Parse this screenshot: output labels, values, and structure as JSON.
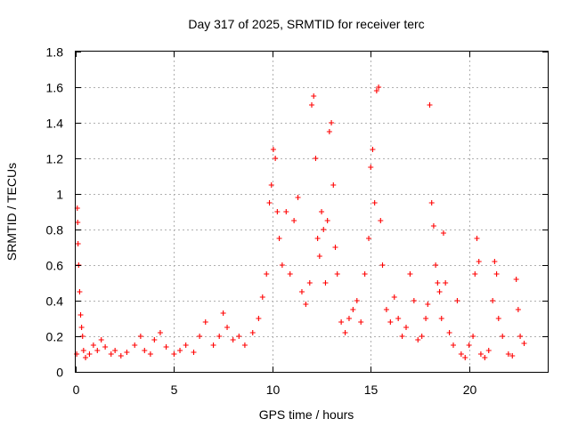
{
  "chart_data": {
    "type": "scatter",
    "title": "Day 317 of 2025, SRMTID for receiver terc",
    "xlabel": "GPS time / hours",
    "ylabel": "SRMTID / TECUs",
    "xlim": [
      0,
      24
    ],
    "ylim": [
      0,
      1.8
    ],
    "xticks": [
      0,
      5,
      10,
      15,
      20
    ],
    "xtick_labels": [
      "0",
      "5",
      "10",
      "15",
      "20"
    ],
    "yticks": [
      0,
      0.2,
      0.4,
      0.6,
      0.8,
      1.0,
      1.2,
      1.4,
      1.6,
      1.8
    ],
    "ytick_labels": [
      "0",
      "0.2",
      "0.4",
      "0.6",
      "0.8",
      "1",
      "1.2",
      "1.4",
      "1.6",
      "1.8"
    ],
    "grid": true,
    "marker": "+",
    "color": "#ff0000",
    "series": [
      {
        "name": "SRMTID",
        "x": [
          0.05,
          0.08,
          0.1,
          0.12,
          0.15,
          0.2,
          0.25,
          0.3,
          0.35,
          0.4,
          0.5,
          0.7,
          0.9,
          1.1,
          1.3,
          1.5,
          1.8,
          2.0,
          2.3,
          2.6,
          3.0,
          3.3,
          3.5,
          3.8,
          4.0,
          4.3,
          4.6,
          5.0,
          5.3,
          5.6,
          6.0,
          6.3,
          6.6,
          7.0,
          7.3,
          7.5,
          7.7,
          8.0,
          8.3,
          8.6,
          9.0,
          9.3,
          9.5,
          9.7,
          9.85,
          9.95,
          10.05,
          10.15,
          10.25,
          10.35,
          10.5,
          10.7,
          10.9,
          11.1,
          11.3,
          11.5,
          11.7,
          11.9,
          12.0,
          12.1,
          12.2,
          12.3,
          12.4,
          12.5,
          12.6,
          12.7,
          12.8,
          12.9,
          13.0,
          13.1,
          13.2,
          13.3,
          13.5,
          13.7,
          13.9,
          14.1,
          14.3,
          14.5,
          14.7,
          14.9,
          15.0,
          15.1,
          15.2,
          15.3,
          15.4,
          15.5,
          15.6,
          15.8,
          16.0,
          16.2,
          16.4,
          16.6,
          16.8,
          17.0,
          17.2,
          17.4,
          17.6,
          17.8,
          17.9,
          18.0,
          18.1,
          18.2,
          18.3,
          18.4,
          18.5,
          18.6,
          18.7,
          18.8,
          19.0,
          19.2,
          19.4,
          19.6,
          19.8,
          20.0,
          20.2,
          20.3,
          20.4,
          20.5,
          20.6,
          20.8,
          21.0,
          21.2,
          21.3,
          21.4,
          21.5,
          21.7,
          22.0,
          22.2,
          22.4,
          22.5,
          22.6,
          22.8
        ],
        "y": [
          0.1,
          0.92,
          0.84,
          0.72,
          0.6,
          0.45,
          0.32,
          0.25,
          0.2,
          0.12,
          0.08,
          0.1,
          0.15,
          0.12,
          0.18,
          0.14,
          0.1,
          0.12,
          0.09,
          0.11,
          0.15,
          0.2,
          0.12,
          0.1,
          0.18,
          0.22,
          0.14,
          0.1,
          0.12,
          0.15,
          0.11,
          0.2,
          0.28,
          0.15,
          0.2,
          0.33,
          0.25,
          0.18,
          0.2,
          0.15,
          0.22,
          0.3,
          0.42,
          0.55,
          0.95,
          1.05,
          1.25,
          1.2,
          0.9,
          0.75,
          0.6,
          0.9,
          0.55,
          0.85,
          0.98,
          0.45,
          0.38,
          0.5,
          1.5,
          1.55,
          1.2,
          0.75,
          0.65,
          0.9,
          0.8,
          0.5,
          0.85,
          1.35,
          1.4,
          1.05,
          0.7,
          0.55,
          0.28,
          0.22,
          0.3,
          0.35,
          0.4,
          0.28,
          0.55,
          0.75,
          1.15,
          1.25,
          0.95,
          1.58,
          1.6,
          0.85,
          0.6,
          0.35,
          0.28,
          0.42,
          0.3,
          0.2,
          0.25,
          0.55,
          0.4,
          0.18,
          0.2,
          0.3,
          0.38,
          1.5,
          0.95,
          0.82,
          0.6,
          0.5,
          0.45,
          0.3,
          0.78,
          0.5,
          0.22,
          0.15,
          0.4,
          0.1,
          0.08,
          0.15,
          0.2,
          0.55,
          0.75,
          0.62,
          0.1,
          0.08,
          0.12,
          0.4,
          0.62,
          0.55,
          0.3,
          0.2,
          0.1,
          0.09,
          0.52,
          0.35,
          0.2,
          0.16
        ]
      }
    ]
  }
}
